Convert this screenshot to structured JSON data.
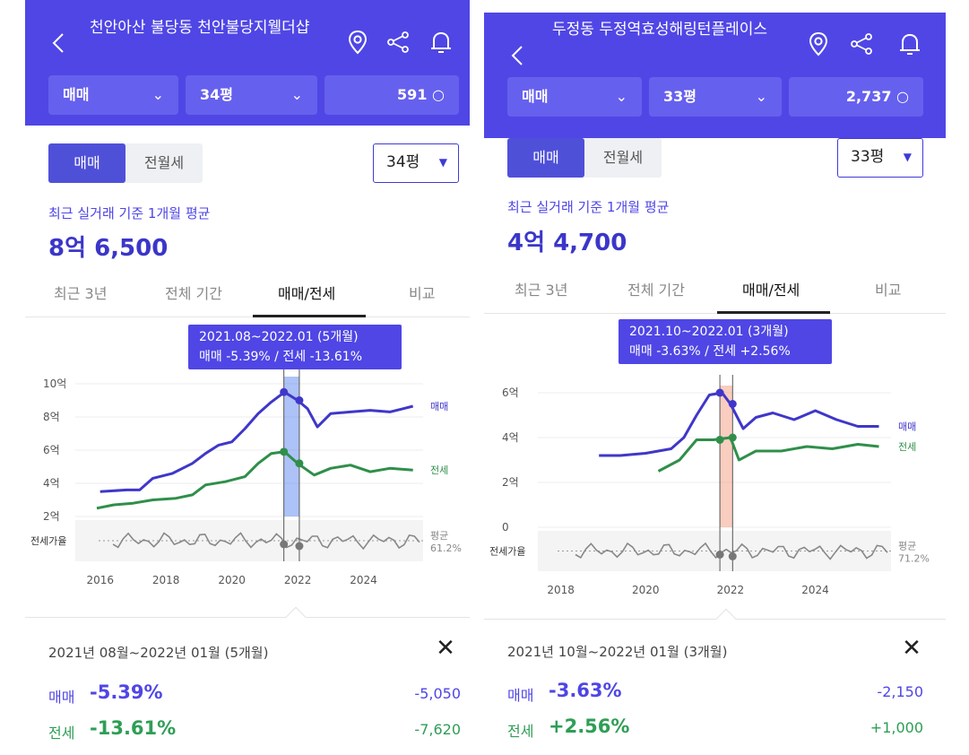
{
  "colors": {
    "header": "#4f46e5",
    "sale_line": "#3f37c9",
    "jeonse_line": "#2f8f4a",
    "ratio_line": "#888888",
    "highlight_left": "#6a8ff0",
    "highlight_right": "#f4a48a"
  },
  "panels": [
    {
      "header": {
        "back_icon": "chevron-left-icon",
        "title": "천안아산 불당동 천안불당지웰더샵",
        "icons": [
          "location-pin-icon",
          "share-icon",
          "bell-icon"
        ]
      },
      "selectors": {
        "deal_type": "매매",
        "area": "34평",
        "count": "591"
      },
      "toggle": {
        "active": "매매",
        "inactive": "전월세"
      },
      "area_dropdown": "34평",
      "average": {
        "label": "최근 실거래 기준 1개월 평균",
        "value": "8억 6,500"
      },
      "tabs": [
        "최근 3년",
        "전체 기간",
        "매매/전세",
        "비교"
      ],
      "active_tab": 2,
      "tooltip": {
        "period": "2021.08~2022.01 (5개월)",
        "summary": "매매 -5.39%  /  전세 -13.61%"
      },
      "chart_data": {
        "type": "line",
        "x_ticks": [
          "2016",
          "2018",
          "2020",
          "2022",
          "2024"
        ],
        "y_ticks": [
          "10억",
          "8억",
          "6억",
          "4억",
          "2억"
        ],
        "ylim": [
          2,
          10
        ],
        "ratio_label": "전세가율",
        "ratio_avg_label": "평균",
        "ratio_avg_value": "61.2%",
        "series": [
          {
            "name": "매매",
            "values": [
              [
                2016.0,
                3.5
              ],
              [
                2016.8,
                3.6
              ],
              [
                2017.2,
                3.6
              ],
              [
                2017.6,
                4.3
              ],
              [
                2018.2,
                4.6
              ],
              [
                2018.8,
                5.2
              ],
              [
                2019.2,
                5.8
              ],
              [
                2019.6,
                6.3
              ],
              [
                2020.0,
                6.5
              ],
              [
                2020.4,
                7.3
              ],
              [
                2020.8,
                8.2
              ],
              [
                2021.2,
                8.9
              ],
              [
                2021.6,
                9.5
              ],
              [
                2022.0,
                9.0
              ],
              [
                2022.3,
                8.5
              ],
              [
                2022.6,
                7.4
              ],
              [
                2022.8,
                7.8
              ],
              [
                2023.0,
                8.2
              ],
              [
                2023.6,
                8.3
              ],
              [
                2024.2,
                8.4
              ],
              [
                2024.8,
                8.3
              ],
              [
                2025.2,
                8.5
              ],
              [
                2025.5,
                8.65
              ]
            ]
          },
          {
            "name": "전세",
            "values": [
              [
                2015.9,
                2.5
              ],
              [
                2016.4,
                2.7
              ],
              [
                2017.0,
                2.8
              ],
              [
                2017.6,
                3.0
              ],
              [
                2018.3,
                3.1
              ],
              [
                2018.8,
                3.3
              ],
              [
                2019.2,
                3.9
              ],
              [
                2019.8,
                4.1
              ],
              [
                2020.4,
                4.4
              ],
              [
                2020.8,
                5.2
              ],
              [
                2021.2,
                5.8
              ],
              [
                2021.6,
                5.9
              ],
              [
                2022.0,
                5.2
              ],
              [
                2022.5,
                4.5
              ],
              [
                2023.0,
                4.9
              ],
              [
                2023.6,
                5.1
              ],
              [
                2024.2,
                4.7
              ],
              [
                2024.8,
                4.9
              ],
              [
                2025.5,
                4.8
              ]
            ]
          }
        ]
      },
      "detail": {
        "period": "2021년 08월~2022년 01월 (5개월)",
        "close_icon": "close-icon",
        "rows": [
          {
            "label": "매매",
            "pct": "-5.39%",
            "amount": "-5,050"
          },
          {
            "label": "전세",
            "pct": "-13.61%",
            "amount": "-7,620"
          }
        ]
      }
    },
    {
      "header": {
        "back_icon": "chevron-left-icon",
        "title": "두정동 두정역효성해링턴플레이스",
        "icons": [
          "location-pin-icon",
          "share-icon",
          "bell-icon"
        ]
      },
      "selectors": {
        "deal_type": "매매",
        "area": "33평",
        "count": "2,737"
      },
      "toggle": {
        "active": "매매",
        "inactive": "전월세"
      },
      "area_dropdown": "33평",
      "average": {
        "label": "최근 실거래 기준 1개월 평균",
        "value": "4억 4,700"
      },
      "tabs": [
        "최근 3년",
        "전체 기간",
        "매매/전세",
        "비교"
      ],
      "active_tab": 2,
      "tooltip": {
        "period": "2021.10~2022.01 (3개월)",
        "summary": "매매 -3.63%  /  전세 +2.56%"
      },
      "chart_data": {
        "type": "line",
        "x_ticks": [
          "2018",
          "2020",
          "2022",
          "2024"
        ],
        "y_ticks": [
          "6억",
          "4억",
          "2억",
          "0"
        ],
        "ylim": [
          0,
          6
        ],
        "ratio_label": "전세가율",
        "ratio_avg_label": "평균",
        "ratio_avg_value": "71.2%",
        "series": [
          {
            "name": "매매",
            "values": [
              [
                2018.9,
                3.2
              ],
              [
                2019.4,
                3.2
              ],
              [
                2020.0,
                3.3
              ],
              [
                2020.6,
                3.5
              ],
              [
                2020.9,
                4.0
              ],
              [
                2021.2,
                5.0
              ],
              [
                2021.5,
                5.9
              ],
              [
                2021.8,
                6.0
              ],
              [
                2022.0,
                5.5
              ],
              [
                2022.3,
                4.4
              ],
              [
                2022.6,
                4.9
              ],
              [
                2023.0,
                5.1
              ],
              [
                2023.5,
                4.8
              ],
              [
                2024.0,
                5.2
              ],
              [
                2024.5,
                4.8
              ],
              [
                2025.0,
                4.5
              ],
              [
                2025.5,
                4.5
              ]
            ]
          },
          {
            "name": "전세",
            "values": [
              [
                2020.3,
                2.5
              ],
              [
                2020.8,
                3.0
              ],
              [
                2021.2,
                3.9
              ],
              [
                2021.6,
                3.9
              ],
              [
                2022.0,
                4.0
              ],
              [
                2022.2,
                3.0
              ],
              [
                2022.6,
                3.4
              ],
              [
                2023.2,
                3.4
              ],
              [
                2023.8,
                3.6
              ],
              [
                2024.4,
                3.5
              ],
              [
                2025.0,
                3.7
              ],
              [
                2025.5,
                3.6
              ]
            ]
          }
        ]
      },
      "detail": {
        "period": "2021년 10월~2022년 01월 (3개월)",
        "close_icon": "close-icon",
        "rows": [
          {
            "label": "매매",
            "pct": "-3.63%",
            "amount": "-2,150"
          },
          {
            "label": "전세",
            "pct": "+2.56%",
            "amount": "+1,000"
          }
        ]
      }
    }
  ]
}
